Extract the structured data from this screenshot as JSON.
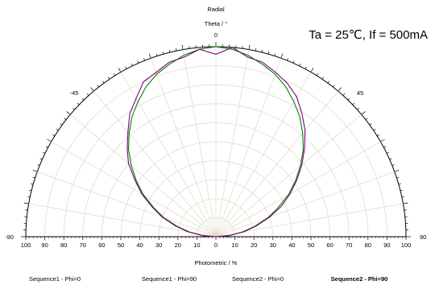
{
  "chart_data": {
    "type": "polar",
    "title_radial": "Radial",
    "theta_label": "Theta / °",
    "radial_axis_label": "Photometric / %",
    "condition_text": "Ta = 25℃, If = 500mA",
    "angle_labels": [
      "0",
      "-45",
      "45",
      "-90",
      "90"
    ],
    "radial_ticks": [
      "100",
      "90",
      "80",
      "70",
      "60",
      "50",
      "40",
      "30",
      "20",
      "10",
      "0",
      "10",
      "20",
      "30",
      "40",
      "50",
      "60",
      "70",
      "80",
      "90",
      "100"
    ],
    "r_max": 100,
    "theta_range": [
      -90,
      90
    ],
    "grid": true,
    "legend": [
      {
        "label": "Sequence1 - Phi=0",
        "bold": false
      },
      {
        "label": "Sequence1 - Phi=90",
        "bold": false
      },
      {
        "label": "Sequence2 - Phi=0",
        "bold": false
      },
      {
        "label": "Sequence2 - Phi=90",
        "bold": true
      }
    ],
    "series": [
      {
        "color": "#008000",
        "theta": [
          -90,
          -85,
          -80,
          -75,
          -70,
          -65,
          -60,
          -55,
          -50,
          -45,
          -40,
          -35,
          -30,
          -25,
          -20,
          -15,
          -10,
          -5,
          0,
          5,
          10,
          15,
          20,
          25,
          30,
          35,
          40,
          45,
          50,
          55,
          60,
          65,
          70,
          75,
          80,
          85,
          90
        ],
        "r": [
          0,
          7,
          14,
          21,
          29,
          36,
          44,
          51,
          58,
          65,
          71,
          77,
          82,
          87,
          91,
          94,
          97,
          99,
          100,
          99,
          97,
          94,
          91,
          87,
          82,
          77,
          71,
          65,
          58,
          51,
          44,
          36,
          29,
          21,
          14,
          7,
          0
        ]
      },
      {
        "color": "#800080",
        "theta": [
          -90,
          -85,
          -80,
          -75,
          -70,
          -65,
          -60,
          -55,
          -50,
          -45,
          -40,
          -35,
          -30,
          -25,
          -20,
          -15,
          -10,
          -5,
          0,
          5,
          10,
          15,
          20,
          25,
          30,
          35,
          40,
          45,
          50,
          55,
          60,
          65,
          70,
          75,
          80,
          85,
          90
        ],
        "r": [
          0,
          7,
          15,
          22,
          30,
          37,
          45,
          52,
          60,
          66,
          72,
          79,
          84,
          90,
          92,
          95,
          96,
          99,
          96,
          100,
          96,
          95,
          92,
          89,
          85,
          79,
          73,
          66,
          59,
          52,
          45,
          38,
          30,
          22,
          15,
          7,
          0
        ]
      }
    ]
  }
}
